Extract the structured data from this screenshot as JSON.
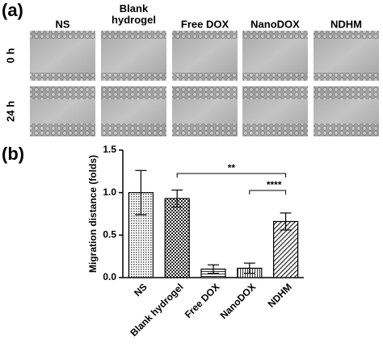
{
  "panel_a": {
    "label": "(a)",
    "columns": [
      "NS",
      "Blank\nhydrogel",
      "Free DOX",
      "NanoDOX",
      "NDHM"
    ],
    "rows": [
      "0 h",
      "24 h"
    ]
  },
  "panel_b": {
    "label": "(b)"
  },
  "chart_data": {
    "type": "bar",
    "categories": [
      "NS",
      "Blank hydrogel",
      "Free DOX",
      "NanoDOX",
      "NDHM"
    ],
    "values": [
      1.0,
      0.93,
      0.1,
      0.11,
      0.66
    ],
    "errors": [
      0.26,
      0.1,
      0.05,
      0.06,
      0.1
    ],
    "y_label": "Migration distance (folds)",
    "ylim": [
      0,
      1.5
    ],
    "yticks": [
      {
        "value": 0,
        "label": "0.0"
      },
      0.5,
      {
        "value": 1,
        "label": "1.0"
      },
      1.5
    ],
    "annotations": [
      "**",
      "****"
    ],
    "color": "#000000"
  }
}
